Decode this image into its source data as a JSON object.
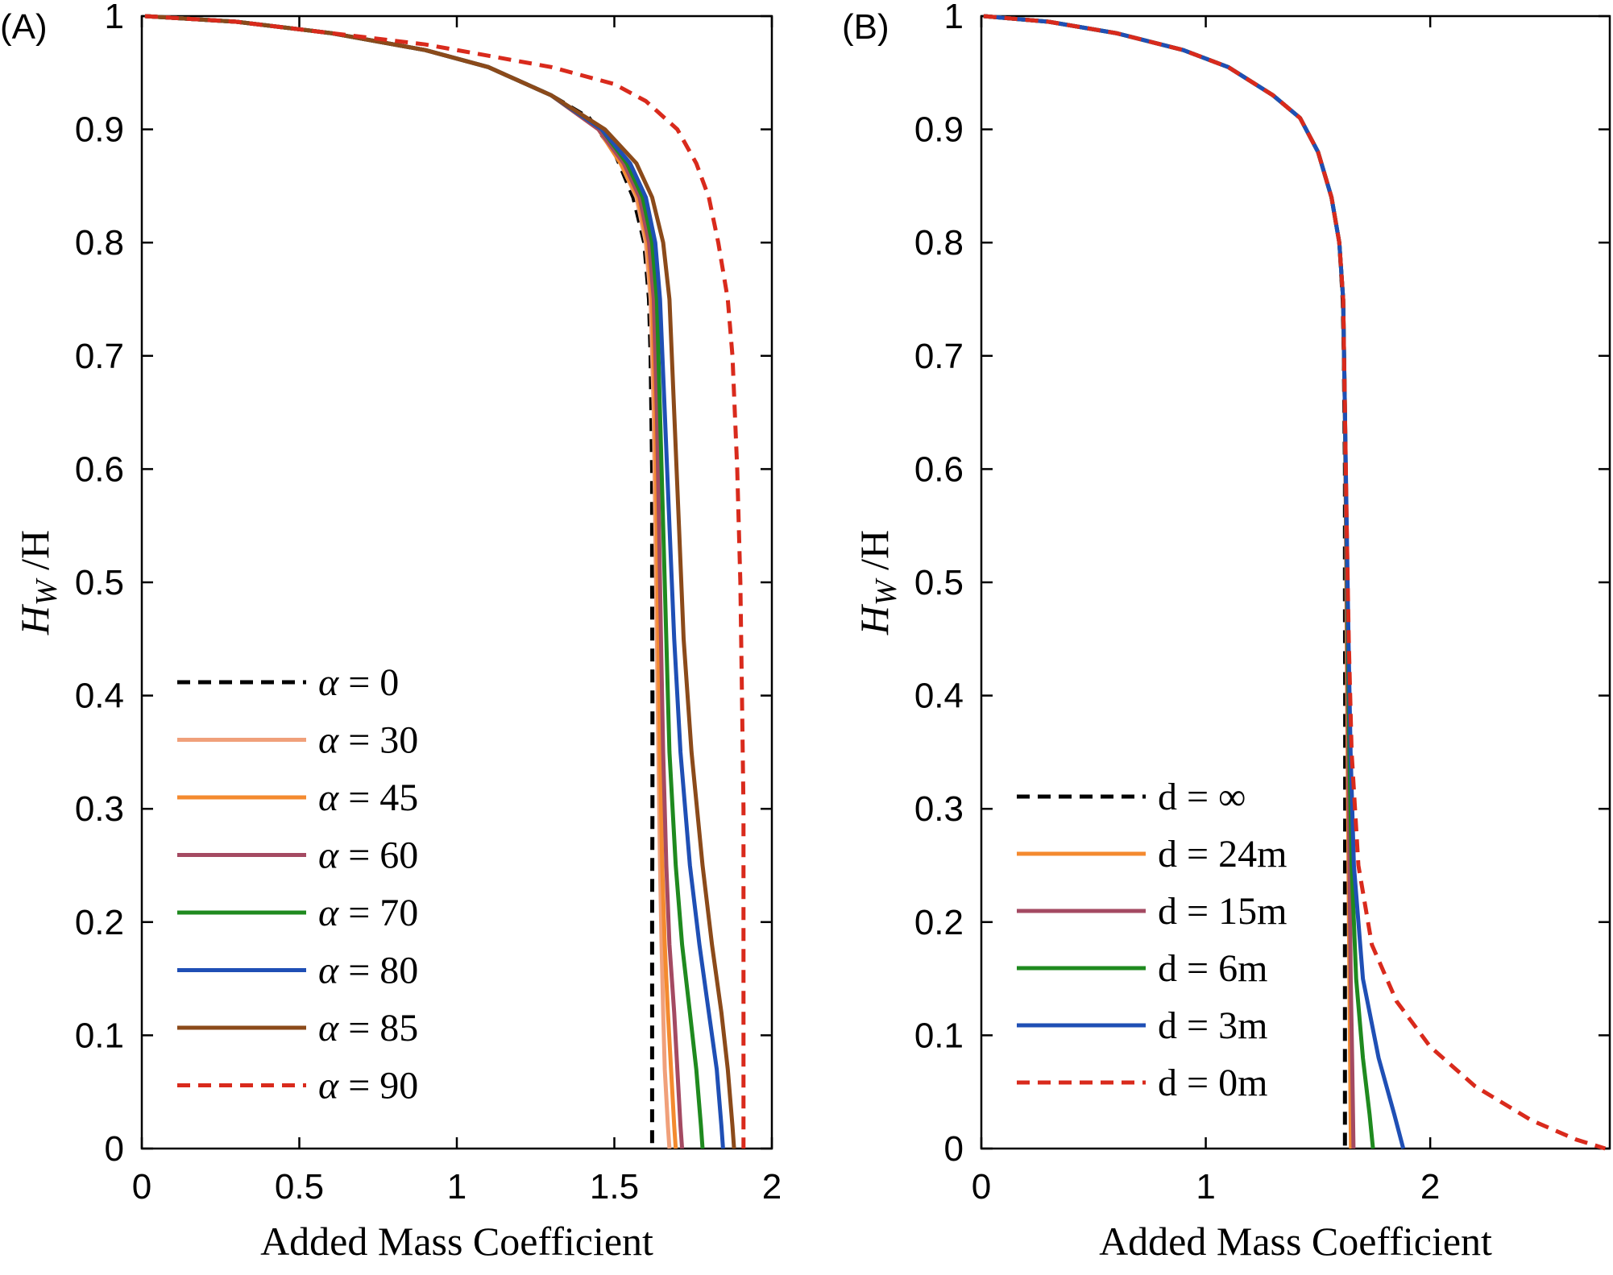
{
  "chart_data": [
    {
      "type": "line",
      "panel_label": "(A)",
      "xlabel": "Added Mass Coefficient",
      "ylabel_main": "H",
      "ylabel_sub": "W",
      "ylabel_tail": " /H",
      "xlim": [
        0,
        2
      ],
      "ylim": [
        0,
        1
      ],
      "xticks": [
        "0",
        "0.5",
        "1",
        "1.5",
        "2"
      ],
      "yticks": [
        "0",
        "0.1",
        "0.2",
        "0.3",
        "0.4",
        "0.5",
        "0.6",
        "0.7",
        "0.8",
        "0.9",
        "1"
      ],
      "grid": false,
      "legend_position": "lower-left",
      "legend_symbol": "α",
      "series": [
        {
          "name": " = 0",
          "color": "#000000",
          "dash": true,
          "x": [
            0.01,
            0.3,
            0.6,
            0.9,
            1.1,
            1.3,
            1.42,
            1.5,
            1.56,
            1.595,
            1.61,
            1.615,
            1.62,
            1.62,
            1.621,
            1.621,
            1.62,
            1.62,
            1.62,
            1.62,
            1.62,
            1.62
          ],
          "y": [
            1.0,
            0.995,
            0.985,
            0.97,
            0.955,
            0.93,
            0.91,
            0.88,
            0.84,
            0.8,
            0.75,
            0.7,
            0.6,
            0.5,
            0.4,
            0.3,
            0.2,
            0.15,
            0.1,
            0.06,
            0.03,
            0.0
          ]
        },
        {
          "name": " = 30",
          "color": "#f0a07a",
          "dash": false,
          "x": [
            0.01,
            0.3,
            0.6,
            0.9,
            1.1,
            1.3,
            1.45,
            1.52,
            1.57,
            1.6,
            1.615,
            1.625,
            1.63,
            1.635,
            1.64,
            1.645,
            1.65,
            1.655,
            1.66,
            1.67,
            1.675
          ],
          "y": [
            1.0,
            0.995,
            0.985,
            0.97,
            0.955,
            0.93,
            0.9,
            0.87,
            0.84,
            0.8,
            0.75,
            0.65,
            0.55,
            0.45,
            0.35,
            0.25,
            0.18,
            0.12,
            0.07,
            0.02,
            0.0
          ]
        },
        {
          "name": " = 45",
          "color": "#f48a2f",
          "dash": false,
          "x": [
            0.01,
            0.3,
            0.6,
            0.9,
            1.1,
            1.3,
            1.45,
            1.52,
            1.575,
            1.605,
            1.62,
            1.63,
            1.635,
            1.64,
            1.645,
            1.652,
            1.66,
            1.67,
            1.68,
            1.69,
            1.695
          ],
          "y": [
            1.0,
            0.995,
            0.985,
            0.97,
            0.955,
            0.93,
            0.9,
            0.87,
            0.84,
            0.8,
            0.75,
            0.65,
            0.55,
            0.45,
            0.35,
            0.25,
            0.18,
            0.12,
            0.07,
            0.02,
            0.0
          ]
        },
        {
          "name": " = 60",
          "color": "#a44a62",
          "dash": false,
          "x": [
            0.01,
            0.3,
            0.6,
            0.9,
            1.1,
            1.3,
            1.45,
            1.53,
            1.58,
            1.61,
            1.625,
            1.635,
            1.642,
            1.648,
            1.655,
            1.665,
            1.675,
            1.69,
            1.7,
            1.71,
            1.715
          ],
          "y": [
            1.0,
            0.995,
            0.985,
            0.97,
            0.955,
            0.93,
            0.9,
            0.87,
            0.84,
            0.8,
            0.75,
            0.65,
            0.55,
            0.45,
            0.35,
            0.25,
            0.18,
            0.12,
            0.07,
            0.02,
            0.0
          ]
        },
        {
          "name": " = 70",
          "color": "#1f8a1f",
          "dash": false,
          "x": [
            0.01,
            0.3,
            0.6,
            0.9,
            1.1,
            1.3,
            1.46,
            1.54,
            1.59,
            1.62,
            1.635,
            1.645,
            1.655,
            1.665,
            1.675,
            1.695,
            1.715,
            1.74,
            1.76,
            1.775,
            1.78
          ],
          "y": [
            1.0,
            0.995,
            0.985,
            0.97,
            0.955,
            0.93,
            0.9,
            0.87,
            0.84,
            0.8,
            0.75,
            0.65,
            0.55,
            0.45,
            0.35,
            0.25,
            0.18,
            0.12,
            0.07,
            0.02,
            0.0
          ]
        },
        {
          "name": " = 80",
          "color": "#1f4fb5",
          "dash": false,
          "x": [
            0.01,
            0.3,
            0.6,
            0.9,
            1.1,
            1.3,
            1.46,
            1.55,
            1.6,
            1.63,
            1.645,
            1.66,
            1.675,
            1.69,
            1.71,
            1.74,
            1.77,
            1.8,
            1.825,
            1.84,
            1.845
          ],
          "y": [
            1.0,
            0.995,
            0.985,
            0.97,
            0.955,
            0.93,
            0.9,
            0.87,
            0.84,
            0.8,
            0.75,
            0.65,
            0.55,
            0.45,
            0.35,
            0.25,
            0.18,
            0.12,
            0.07,
            0.02,
            0.0
          ]
        },
        {
          "name": " = 85",
          "color": "#8b4a1a",
          "dash": false,
          "x": [
            0.01,
            0.3,
            0.6,
            0.9,
            1.1,
            1.3,
            1.47,
            1.57,
            1.62,
            1.655,
            1.675,
            1.69,
            1.705,
            1.72,
            1.745,
            1.78,
            1.81,
            1.84,
            1.86,
            1.875,
            1.88
          ],
          "y": [
            1.0,
            0.995,
            0.985,
            0.97,
            0.955,
            0.93,
            0.9,
            0.87,
            0.84,
            0.8,
            0.75,
            0.65,
            0.55,
            0.45,
            0.35,
            0.25,
            0.18,
            0.12,
            0.07,
            0.02,
            0.0
          ]
        },
        {
          "name": " = 90",
          "color": "#d92a1c",
          "dash": true,
          "x": [
            0.01,
            0.3,
            0.6,
            0.9,
            1.1,
            1.3,
            1.5,
            1.6,
            1.7,
            1.76,
            1.8,
            1.83,
            1.86,
            1.875,
            1.89,
            1.9,
            1.905,
            1.91,
            1.91,
            1.91,
            1.91
          ],
          "y": [
            1.0,
            0.995,
            0.985,
            0.975,
            0.965,
            0.955,
            0.94,
            0.925,
            0.9,
            0.87,
            0.84,
            0.8,
            0.75,
            0.7,
            0.6,
            0.5,
            0.4,
            0.3,
            0.2,
            0.1,
            0.0
          ]
        }
      ]
    },
    {
      "type": "line",
      "panel_label": "(B)",
      "xlabel": "Added Mass Coefficient",
      "ylabel_main": "H",
      "ylabel_sub": "W",
      "ylabel_tail": " /H",
      "xlim": [
        0,
        2.8
      ],
      "ylim": [
        0,
        1
      ],
      "xticks": [
        "0",
        "1",
        "2"
      ],
      "xtick_values": [
        0,
        1,
        2
      ],
      "yticks": [
        "0",
        "0.1",
        "0.2",
        "0.3",
        "0.4",
        "0.5",
        "0.6",
        "0.7",
        "0.8",
        "0.9",
        "1"
      ],
      "grid": false,
      "legend_position": "lower-left",
      "series": [
        {
          "name": "d = ∞",
          "color": "#000000",
          "dash": true,
          "x": [
            0.01,
            0.3,
            0.6,
            0.9,
            1.1,
            1.3,
            1.42,
            1.5,
            1.56,
            1.595,
            1.61,
            1.615,
            1.62,
            1.62,
            1.621,
            1.621,
            1.62,
            1.62,
            1.62,
            1.62,
            1.62
          ],
          "y": [
            1.0,
            0.995,
            0.985,
            0.97,
            0.955,
            0.93,
            0.91,
            0.88,
            0.84,
            0.8,
            0.75,
            0.7,
            0.6,
            0.5,
            0.4,
            0.3,
            0.2,
            0.15,
            0.1,
            0.05,
            0.0
          ]
        },
        {
          "name": "d = 24m",
          "color": "#f48a2f",
          "dash": false,
          "x": [
            0.01,
            0.3,
            0.6,
            0.9,
            1.1,
            1.3,
            1.42,
            1.5,
            1.56,
            1.595,
            1.612,
            1.62,
            1.625,
            1.628,
            1.632,
            1.636,
            1.64,
            1.643,
            1.645,
            1.647
          ],
          "y": [
            1.0,
            0.995,
            0.985,
            0.97,
            0.955,
            0.93,
            0.91,
            0.88,
            0.84,
            0.8,
            0.75,
            0.65,
            0.55,
            0.45,
            0.35,
            0.25,
            0.15,
            0.08,
            0.03,
            0.0
          ]
        },
        {
          "name": "d = 15m",
          "color": "#a44a62",
          "dash": false,
          "x": [
            0.01,
            0.3,
            0.6,
            0.9,
            1.1,
            1.3,
            1.42,
            1.5,
            1.56,
            1.595,
            1.612,
            1.62,
            1.625,
            1.63,
            1.635,
            1.64,
            1.646,
            1.652,
            1.656,
            1.658
          ],
          "y": [
            1.0,
            0.995,
            0.985,
            0.97,
            0.955,
            0.93,
            0.91,
            0.88,
            0.84,
            0.8,
            0.75,
            0.65,
            0.55,
            0.45,
            0.35,
            0.25,
            0.15,
            0.08,
            0.03,
            0.0
          ]
        },
        {
          "name": "d = 6m",
          "color": "#1f8a1f",
          "dash": false,
          "x": [
            0.01,
            0.3,
            0.6,
            0.9,
            1.1,
            1.3,
            1.42,
            1.5,
            1.56,
            1.595,
            1.612,
            1.62,
            1.627,
            1.633,
            1.64,
            1.65,
            1.67,
            1.7,
            1.73,
            1.745
          ],
          "y": [
            1.0,
            0.995,
            0.985,
            0.97,
            0.955,
            0.93,
            0.91,
            0.88,
            0.84,
            0.8,
            0.75,
            0.65,
            0.55,
            0.45,
            0.35,
            0.25,
            0.15,
            0.08,
            0.03,
            0.0
          ]
        },
        {
          "name": "d = 3m",
          "color": "#1f4fb5",
          "dash": false,
          "x": [
            0.01,
            0.3,
            0.6,
            0.9,
            1.1,
            1.3,
            1.42,
            1.5,
            1.56,
            1.595,
            1.612,
            1.62,
            1.628,
            1.636,
            1.645,
            1.66,
            1.7,
            1.77,
            1.84,
            1.88
          ],
          "y": [
            1.0,
            0.995,
            0.985,
            0.97,
            0.955,
            0.93,
            0.91,
            0.88,
            0.84,
            0.8,
            0.75,
            0.65,
            0.55,
            0.45,
            0.35,
            0.25,
            0.15,
            0.08,
            0.03,
            0.0
          ]
        },
        {
          "name": "d = 0m",
          "color": "#d92a1c",
          "dash": true,
          "x": [
            0.01,
            0.3,
            0.6,
            0.9,
            1.1,
            1.3,
            1.42,
            1.5,
            1.56,
            1.595,
            1.612,
            1.62,
            1.628,
            1.637,
            1.65,
            1.68,
            1.74,
            1.85,
            2.0,
            2.2,
            2.45,
            2.65,
            2.78
          ],
          "y": [
            1.0,
            0.995,
            0.985,
            0.97,
            0.955,
            0.93,
            0.91,
            0.88,
            0.84,
            0.8,
            0.75,
            0.65,
            0.55,
            0.45,
            0.35,
            0.25,
            0.18,
            0.13,
            0.09,
            0.055,
            0.025,
            0.008,
            0.0
          ]
        }
      ]
    }
  ]
}
